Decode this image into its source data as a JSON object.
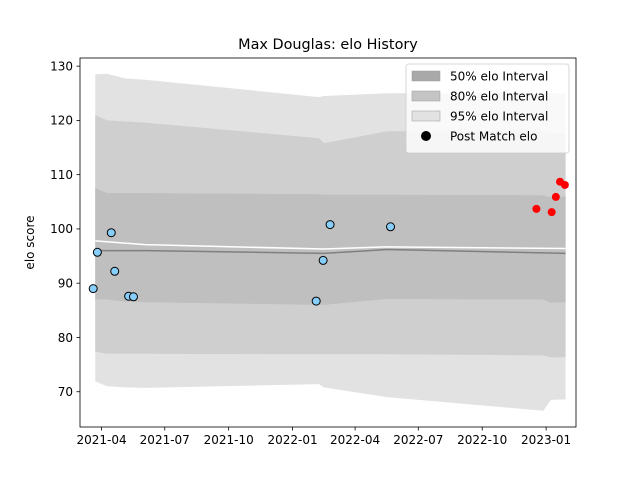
{
  "chart_data": {
    "type": "scatter",
    "title": "Max Douglas: elo History",
    "xlabel": "",
    "ylabel": "elo score",
    "ylim": [
      63.5,
      131.5
    ],
    "xlim": [
      "2021-03-01",
      "2023-02-13"
    ],
    "x_ticks": [
      {
        "date": "2021-04-01",
        "label": "2021-04"
      },
      {
        "date": "2021-07-01",
        "label": "2021-07"
      },
      {
        "date": "2021-10-01",
        "label": "2021-10"
      },
      {
        "date": "2022-01-01",
        "label": "2022-01"
      },
      {
        "date": "2022-04-01",
        "label": "2022-04"
      },
      {
        "date": "2022-07-01",
        "label": "2022-07"
      },
      {
        "date": "2022-10-01",
        "label": "2022-10"
      },
      {
        "date": "2023-01-01",
        "label": "2023-01"
      }
    ],
    "y_ticks": [
      70,
      80,
      90,
      100,
      110,
      120,
      130
    ],
    "grid": false,
    "legend_position": "top-right",
    "legend": [
      {
        "label": "50% elo Interval",
        "kind": "patch",
        "color": "#a9a9a9"
      },
      {
        "label": "80% elo Interval",
        "kind": "patch",
        "color": "#c4c4c4"
      },
      {
        "label": "95% elo Interval",
        "kind": "patch",
        "color": "#e2e2e2"
      },
      {
        "label": "Post Match elo",
        "kind": "marker",
        "color": "#000000"
      }
    ],
    "band_x": [
      "2021-03-23",
      "2021-04-09",
      "2021-05-06",
      "2021-06-03",
      "2022-02-08",
      "2022-02-15",
      "2022-05-17",
      "2022-12-28",
      "2023-01-08",
      "2023-01-29"
    ],
    "intervals": [
      {
        "name": "95% elo Interval",
        "color": "#e2e2e2",
        "upper": [
          128.5,
          128.6,
          127.7,
          127.5,
          124.3,
          124.5,
          125.0,
          125.0,
          125.0,
          125.0
        ],
        "lower": [
          71.9,
          71.0,
          70.8,
          70.7,
          71.4,
          70.8,
          69.0,
          66.5,
          68.5,
          68.6
        ]
      },
      {
        "name": "80% elo Interval",
        "color": "#cfcfcf",
        "upper": [
          121.0,
          120.0,
          119.8,
          119.6,
          116.7,
          115.8,
          118.0,
          118.0,
          117.7,
          117.5
        ],
        "lower": [
          77.4,
          77.0,
          77.0,
          77.0,
          76.9,
          76.9,
          76.9,
          76.7,
          76.3,
          76.4
        ]
      },
      {
        "name": "50% elo Interval",
        "color": "#bfbfbf",
        "upper": [
          107.5,
          106.6,
          106.6,
          106.6,
          106.4,
          106.3,
          106.3,
          106.2,
          105.8,
          106.0
        ],
        "lower": [
          87.0,
          87.0,
          86.6,
          86.5,
          86.0,
          86.0,
          87.1,
          87.0,
          86.4,
          86.5
        ]
      }
    ],
    "mean_line": {
      "color": "#808080",
      "x": [
        "2021-03-23",
        "2021-06-03",
        "2022-02-15",
        "2022-05-17",
        "2023-01-29"
      ],
      "y": [
        96.0,
        96.0,
        95.5,
        96.2,
        95.5
      ]
    },
    "median_line": {
      "color": "#ffffff",
      "x": [
        "2021-03-23",
        "2021-06-03",
        "2022-02-15",
        "2022-05-17",
        "2023-01-29"
      ],
      "y": [
        97.8,
        97.1,
        96.3,
        96.7,
        96.4
      ]
    },
    "series": [
      {
        "name": "Post Match elo",
        "color": "#87cefa",
        "edge": "#000000",
        "x": [
          "2021-03-20",
          "2021-03-26",
          "2021-04-15",
          "2021-04-20",
          "2021-05-10",
          "2021-05-17",
          "2022-02-04",
          "2022-02-14",
          "2022-02-24",
          "2022-05-22"
        ],
        "y": [
          89.0,
          95.7,
          99.3,
          92.2,
          87.6,
          87.5,
          86.7,
          94.2,
          100.8,
          100.4
        ]
      },
      {
        "name": "",
        "color": "#ff0000",
        "edge": "none",
        "x": [
          "2022-12-18",
          "2023-01-09",
          "2023-01-15",
          "2023-01-21",
          "2023-01-28"
        ],
        "y": [
          103.7,
          103.1,
          105.9,
          108.7,
          108.1
        ]
      }
    ]
  }
}
